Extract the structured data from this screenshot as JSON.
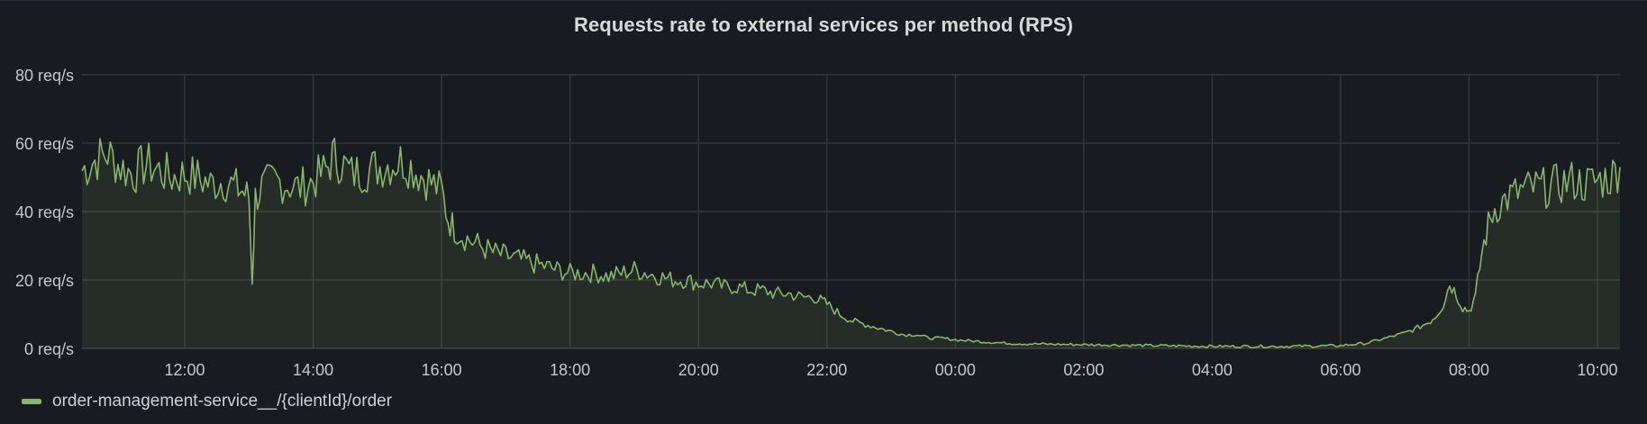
{
  "panel": {
    "title": "Requests rate to external services per method (RPS)"
  },
  "chart_data": {
    "type": "area",
    "grid": true,
    "legend_position": "bottom-left",
    "y_tick_values": [
      0,
      20,
      40,
      60,
      80
    ],
    "y_tick_labels": [
      "0 req/s",
      "20 req/s",
      "40 req/s",
      "60 req/s",
      "80 req/s"
    ],
    "ylim": [
      0,
      80
    ],
    "x_tick_labels": [
      "12:00",
      "14:00",
      "16:00",
      "18:00",
      "20:00",
      "22:00",
      "00:00",
      "02:00",
      "04:00",
      "06:00",
      "08:00",
      "10:00"
    ],
    "x_tick_hours": [
      12,
      14,
      16,
      18,
      20,
      22,
      24,
      26,
      28,
      30,
      32,
      34
    ],
    "xlim_hours": [
      10.4,
      34.35
    ],
    "series": [
      {
        "name": "order-management-service__/{clientId}/order",
        "color": "#8ab56c",
        "x_hours": [
          10.4,
          10.6,
          10.8,
          11.0,
          11.2,
          11.4,
          11.6,
          11.8,
          12.0,
          12.2,
          12.4,
          12.6,
          12.8,
          12.9,
          13.0,
          13.05,
          13.1,
          13.2,
          13.4,
          13.6,
          13.8,
          14.0,
          14.2,
          14.3,
          14.4,
          14.6,
          14.8,
          15.0,
          15.2,
          15.4,
          15.6,
          15.8,
          16.0,
          16.1,
          16.2,
          16.4,
          16.6,
          16.8,
          17.0,
          17.2,
          17.4,
          17.6,
          17.8,
          18.0,
          18.2,
          18.4,
          18.6,
          18.8,
          19.0,
          19.2,
          19.4,
          19.6,
          19.8,
          20.0,
          20.2,
          20.4,
          20.6,
          20.8,
          21.0,
          21.2,
          21.4,
          21.6,
          21.8,
          21.9,
          22.0,
          22.2,
          22.4,
          22.6,
          22.8,
          23.0,
          23.2,
          23.4,
          23.6,
          23.8,
          24.0,
          24.4,
          24.8,
          25.2,
          25.6,
          26.0,
          26.4,
          26.8,
          27.2,
          27.6,
          28.0,
          28.4,
          28.8,
          29.2,
          29.6,
          30.0,
          30.2,
          30.4,
          30.6,
          30.8,
          31.0,
          31.2,
          31.4,
          31.5,
          31.6,
          31.7,
          31.8,
          31.9,
          32.0,
          32.1,
          32.2,
          32.3,
          32.4,
          32.6,
          32.8,
          33.0,
          33.2,
          33.4,
          33.6,
          33.8,
          34.0,
          34.2,
          34.35
        ],
        "values": [
          52,
          55,
          57,
          53,
          51,
          54,
          52,
          50,
          51,
          50,
          48,
          49,
          47,
          46,
          44,
          20,
          44,
          47,
          49,
          48,
          47,
          49,
          52,
          56,
          55,
          51,
          52,
          53,
          54,
          55,
          52,
          49,
          46,
          38,
          35,
          32,
          30,
          28,
          27,
          26,
          25,
          24,
          23,
          22,
          22,
          22,
          21,
          22,
          23,
          22,
          21,
          20,
          20,
          19,
          19,
          18,
          18,
          17,
          17,
          16,
          16,
          15,
          15,
          14,
          13,
          10,
          8,
          7,
          6,
          5,
          4,
          4,
          3,
          3,
          2.5,
          2,
          1.5,
          1.3,
          1.2,
          1.1,
          1.0,
          0.9,
          0.8,
          0.7,
          0.6,
          0.6,
          0.6,
          0.6,
          0.7,
          0.8,
          1.2,
          1.5,
          2.5,
          3.5,
          4.5,
          6,
          8,
          10,
          13,
          19,
          16,
          12,
          11,
          15,
          28,
          36,
          41,
          44,
          46,
          47,
          47,
          48,
          49,
          48,
          49,
          50,
          53
        ]
      }
    ]
  }
}
